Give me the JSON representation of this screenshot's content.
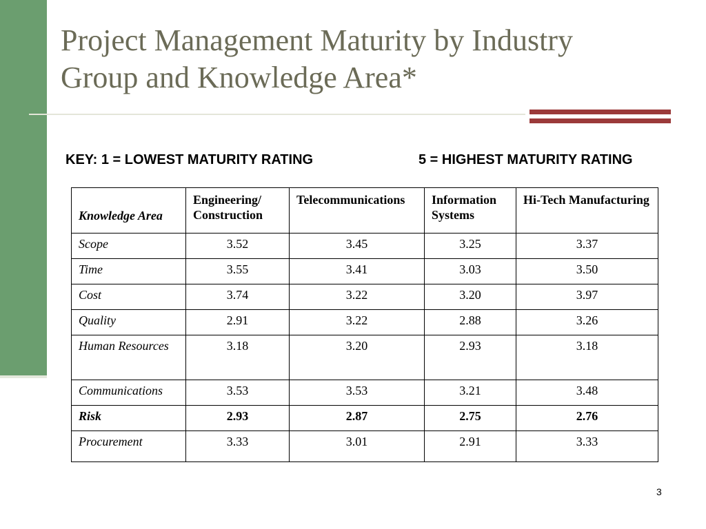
{
  "slide": {
    "title_line1": "Project Management Maturity by Industry",
    "title_line2": "Group and Knowledge Area*",
    "key_left": "KEY: 1 = LOWEST MATURITY RATING",
    "key_right": "5 = HIGHEST MATURITY RATING",
    "page_number": "3",
    "accent_colors": {
      "sidebar_green": "#6b9e6f",
      "stripe_red": "#9b3a3a",
      "title_gray": "#6b6b57"
    }
  },
  "table": {
    "headers": [
      "Knowledge Area",
      "Engineering/ Construction",
      "Telecommunications",
      "Information Systems",
      "Hi-Tech Manufacturing"
    ],
    "rows": [
      {
        "area": "Scope",
        "values": [
          "3.52",
          "3.45",
          "3.25",
          "3.37"
        ]
      },
      {
        "area": "Time",
        "values": [
          "3.55",
          "3.41",
          "3.03",
          "3.50"
        ]
      },
      {
        "area": "Cost",
        "values": [
          "3.74",
          "3.22",
          "3.20",
          "3.97"
        ]
      },
      {
        "area": "Quality",
        "values": [
          "2.91",
          "3.22",
          "2.88",
          "3.26"
        ]
      },
      {
        "area": "Human Resources",
        "values": [
          "3.18",
          "3.20",
          "2.93",
          "3.18"
        ]
      },
      {
        "area": "Communications",
        "values": [
          "3.53",
          "3.53",
          "3.21",
          "3.48"
        ]
      },
      {
        "area": "Risk",
        "values": [
          "2.93",
          "2.87",
          "2.75",
          "2.76"
        ]
      },
      {
        "area": "Procurement",
        "values": [
          "3.33",
          "3.01",
          "2.91",
          "3.33"
        ]
      }
    ]
  }
}
